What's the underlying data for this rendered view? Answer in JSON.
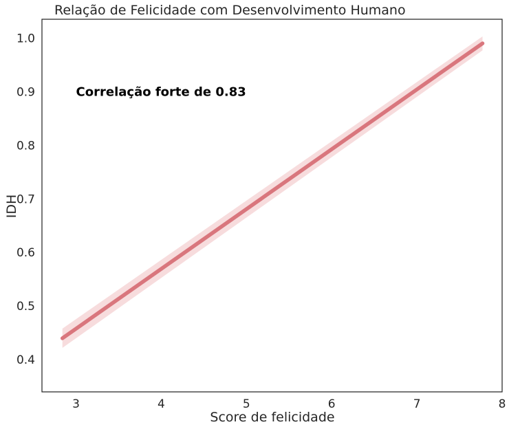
{
  "chart_data": {
    "type": "line",
    "title": "Relação de Felicidade com Desenvolvimento Humano",
    "xlabel": "Score de felicidade",
    "ylabel": "IDH",
    "xlim": [
      2.6,
      8.0
    ],
    "ylim": [
      0.34,
      1.035
    ],
    "x_ticks": [
      3,
      4,
      5,
      6,
      7,
      8
    ],
    "y_ticks": [
      0.4,
      0.5,
      0.6,
      0.7,
      0.8,
      0.9,
      1.0
    ],
    "x_tick_labels": [
      "3",
      "4",
      "5",
      "6",
      "7",
      "8"
    ],
    "y_tick_labels": [
      "0.4",
      "0.5",
      "0.6",
      "0.7",
      "0.8",
      "0.9",
      "1.0"
    ],
    "grid": false,
    "series": [
      {
        "x": [
          2.84,
          7.77
        ],
        "y": [
          0.44,
          0.99
        ],
        "color": "#d9767d",
        "ci_halfwidth": [
          0.018,
          0.013
        ],
        "ci_color": "#f4d0d2"
      }
    ],
    "annotation": {
      "text": "Correlação forte de 0.83",
      "x": 3.0,
      "y": 0.9
    }
  }
}
